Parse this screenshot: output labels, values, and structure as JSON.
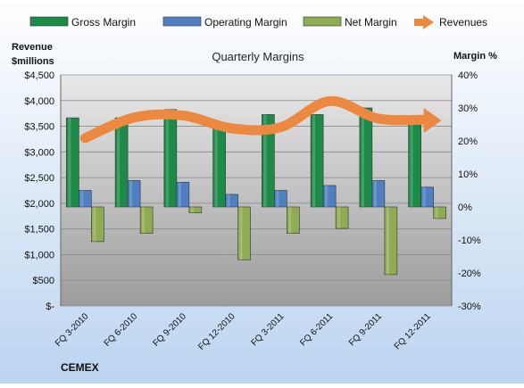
{
  "chart_data": {
    "type": "bar",
    "title": "Quarterly Margins",
    "left_axis_label": [
      "Revenue",
      "$millions"
    ],
    "right_axis_label": "Margin %",
    "company": "CEMEX",
    "categories": [
      "FQ 3-2010",
      "FQ 6-2010",
      "FQ 9-2010",
      "FQ 12-2010",
      "FQ 3-2011",
      "FQ 6-2011",
      "FQ 9-2011",
      "FQ 12-2011"
    ],
    "left_axis": {
      "min": 0,
      "max": 4500,
      "step": 500,
      "ticks": [
        "$-",
        "$500",
        "$1,000",
        "$1,500",
        "$2,000",
        "$2,500",
        "$3,000",
        "$3,500",
        "$4,000",
        "$4,500"
      ]
    },
    "right_axis": {
      "min": -30,
      "max": 40,
      "step": 10,
      "ticks": [
        "-30%",
        "-20%",
        "-10%",
        "0%",
        "10%",
        "20%",
        "30%",
        "40%"
      ]
    },
    "series": [
      {
        "name": "Gross Margin",
        "kind": "bar",
        "axis": "right",
        "unit": "%",
        "color": "#1e8a47",
        "values": [
          27,
          27,
          29.5,
          24.5,
          28,
          28,
          30,
          27
        ]
      },
      {
        "name": "Operating Margin",
        "kind": "bar",
        "axis": "right",
        "unit": "%",
        "color": "#4f7fc0",
        "values": [
          5,
          8,
          7.5,
          3.8,
          5,
          6.5,
          8,
          6
        ]
      },
      {
        "name": "Net Margin",
        "kind": "bar",
        "axis": "right",
        "unit": "%",
        "color": "#8fac52",
        "values": [
          -10.5,
          -8,
          -1.8,
          -16,
          -8,
          -6.5,
          -20.5,
          -3.5
        ]
      },
      {
        "name": "Revenues",
        "kind": "line",
        "axis": "left",
        "unit": "$millions",
        "color": "#ec8840",
        "values": [
          3270,
          3670,
          3710,
          3460,
          3480,
          3990,
          3650,
          3630
        ]
      }
    ],
    "grid": true,
    "legend": "top"
  }
}
